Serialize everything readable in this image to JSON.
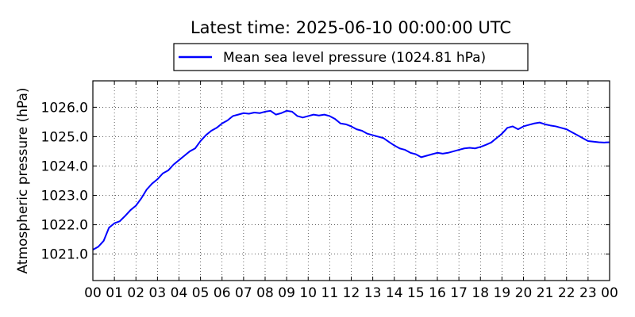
{
  "chart_data": {
    "type": "line",
    "title": "Latest time: 2025-06-10 00:00:00 UTC",
    "xlabel": "",
    "ylabel": "Atmospheric pressure (hPa)",
    "xlim": [
      0,
      24
    ],
    "ylim": [
      1020.1,
      1026.9
    ],
    "grid": true,
    "legend_position": "top-center",
    "x_tick_labels": [
      "00",
      "01",
      "02",
      "03",
      "04",
      "05",
      "06",
      "07",
      "08",
      "09",
      "10",
      "11",
      "12",
      "13",
      "14",
      "15",
      "16",
      "17",
      "18",
      "19",
      "20",
      "21",
      "22",
      "23",
      "00"
    ],
    "y_ticks": [
      1021.0,
      1022.0,
      1023.0,
      1024.0,
      1025.0,
      1026.0
    ],
    "y_tick_labels": [
      "1021.0",
      "1022.0",
      "1023.0",
      "1024.0",
      "1025.0",
      "1026.0"
    ],
    "series": [
      {
        "name": "Mean sea level pressure (1024.81 hPa)",
        "color": "#0000ff",
        "x": [
          0,
          0.25,
          0.5,
          0.75,
          1.0,
          1.25,
          1.5,
          1.75,
          2.0,
          2.25,
          2.5,
          2.75,
          3.0,
          3.25,
          3.5,
          3.75,
          4.0,
          4.25,
          4.5,
          4.75,
          5.0,
          5.25,
          5.5,
          5.75,
          6.0,
          6.25,
          6.5,
          6.75,
          7.0,
          7.25,
          7.5,
          7.75,
          8.0,
          8.25,
          8.5,
          8.75,
          9.0,
          9.25,
          9.5,
          9.75,
          10.0,
          10.25,
          10.5,
          10.75,
          11.0,
          11.25,
          11.5,
          11.75,
          12.0,
          12.25,
          12.5,
          12.75,
          13.0,
          13.25,
          13.5,
          13.75,
          14.0,
          14.25,
          14.5,
          14.75,
          15.0,
          15.25,
          15.5,
          15.75,
          16.0,
          16.25,
          16.5,
          16.75,
          17.0,
          17.25,
          17.5,
          17.75,
          18.0,
          18.25,
          18.5,
          18.75,
          19.0,
          19.25,
          19.5,
          19.75,
          20.0,
          20.25,
          20.5,
          20.75,
          21.0,
          21.25,
          21.5,
          21.75,
          22.0,
          22.25,
          22.5,
          22.75,
          23.0,
          23.25,
          23.5,
          23.75,
          24.0
        ],
        "values": [
          1021.15,
          1021.25,
          1021.45,
          1021.9,
          1022.05,
          1022.12,
          1022.3,
          1022.5,
          1022.65,
          1022.9,
          1023.2,
          1023.4,
          1023.55,
          1023.75,
          1023.85,
          1024.05,
          1024.2,
          1024.35,
          1024.5,
          1024.6,
          1024.85,
          1025.05,
          1025.2,
          1025.3,
          1025.45,
          1025.55,
          1025.7,
          1025.75,
          1025.8,
          1025.78,
          1025.82,
          1025.8,
          1025.85,
          1025.88,
          1025.75,
          1025.8,
          1025.88,
          1025.85,
          1025.7,
          1025.65,
          1025.7,
          1025.75,
          1025.72,
          1025.75,
          1025.7,
          1025.6,
          1025.45,
          1025.42,
          1025.35,
          1025.25,
          1025.2,
          1025.1,
          1025.05,
          1025.0,
          1024.95,
          1024.82,
          1024.7,
          1024.6,
          1024.55,
          1024.45,
          1024.4,
          1024.3,
          1024.35,
          1024.4,
          1024.45,
          1024.42,
          1024.45,
          1024.5,
          1024.55,
          1024.6,
          1024.62,
          1024.6,
          1024.65,
          1024.72,
          1024.8,
          1024.95,
          1025.1,
          1025.3,
          1025.35,
          1025.25,
          1025.35,
          1025.4,
          1025.45,
          1025.48,
          1025.42,
          1025.38,
          1025.35,
          1025.3,
          1025.25,
          1025.15,
          1025.05,
          1024.95,
          1024.85,
          1024.83,
          1024.81,
          1024.8,
          1024.81
        ]
      }
    ]
  }
}
